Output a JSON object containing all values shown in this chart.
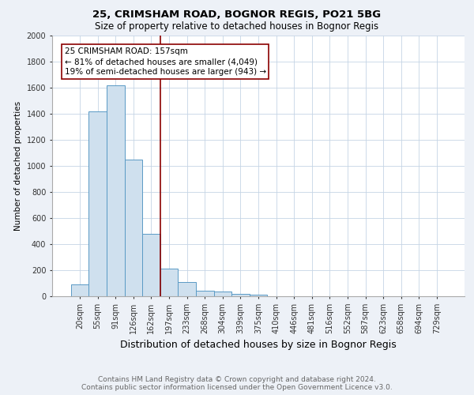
{
  "title1": "25, CRIMSHAM ROAD, BOGNOR REGIS, PO21 5BG",
  "title2": "Size of property relative to detached houses in Bognor Regis",
  "xlabel": "Distribution of detached houses by size in Bognor Regis",
  "ylabel": "Number of detached properties",
  "categories": [
    "20sqm",
    "55sqm",
    "91sqm",
    "126sqm",
    "162sqm",
    "197sqm",
    "233sqm",
    "268sqm",
    "304sqm",
    "339sqm",
    "375sqm",
    "410sqm",
    "446sqm",
    "481sqm",
    "516sqm",
    "552sqm",
    "587sqm",
    "623sqm",
    "658sqm",
    "694sqm",
    "729sqm"
  ],
  "values": [
    90,
    1420,
    1620,
    1050,
    480,
    210,
    110,
    45,
    35,
    20,
    15,
    0,
    0,
    0,
    0,
    0,
    0,
    0,
    0,
    0,
    0
  ],
  "bar_color": "#cfe0ee",
  "bar_edge_color": "#5a9ac5",
  "ylim": [
    0,
    2000
  ],
  "yticks": [
    0,
    200,
    400,
    600,
    800,
    1000,
    1200,
    1400,
    1600,
    1800,
    2000
  ],
  "vline_x": 4.5,
  "vline_color": "#8b0000",
  "annotation_text": "25 CRIMSHAM ROAD: 157sqm\n← 81% of detached houses are smaller (4,049)\n19% of semi-detached houses are larger (943) →",
  "annotation_box_color": "white",
  "annotation_border_color": "#8b0000",
  "footer1": "Contains HM Land Registry data © Crown copyright and database right 2024.",
  "footer2": "Contains public sector information licensed under the Open Government Licence v3.0.",
  "bg_color": "#edf1f7",
  "plot_bg_color": "white",
  "grid_color": "#c5d5e5",
  "title1_fontsize": 9.5,
  "title2_fontsize": 8.5,
  "xlabel_fontsize": 9,
  "ylabel_fontsize": 7.5,
  "tick_fontsize": 7,
  "annot_fontsize": 7.5,
  "footer_fontsize": 6.5
}
